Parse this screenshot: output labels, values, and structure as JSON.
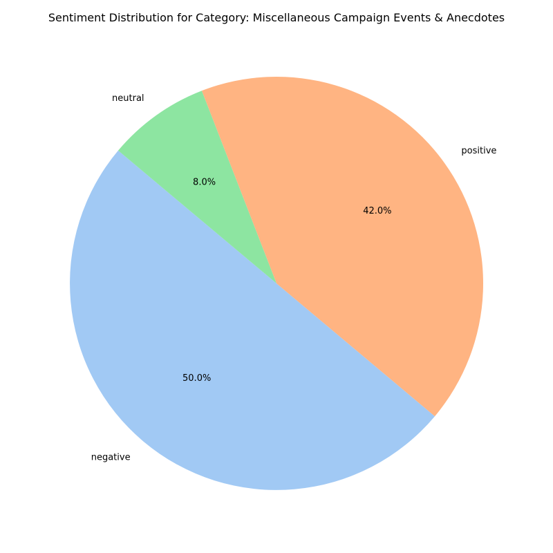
{
  "chart_data": {
    "type": "pie",
    "title": "Sentiment Distribution for Category: Miscellaneous Campaign Events & Anecdotes",
    "categories": [
      "negative",
      "positive",
      "neutral"
    ],
    "values": [
      50.0,
      42.0,
      8.0
    ],
    "percent_labels": [
      "50.0%",
      "42.0%",
      "8.0%"
    ],
    "colors": [
      "#a1c9f4",
      "#ffb482",
      "#8de5a1"
    ],
    "start_angle_deg": 140,
    "direction": "counterclockwise"
  }
}
